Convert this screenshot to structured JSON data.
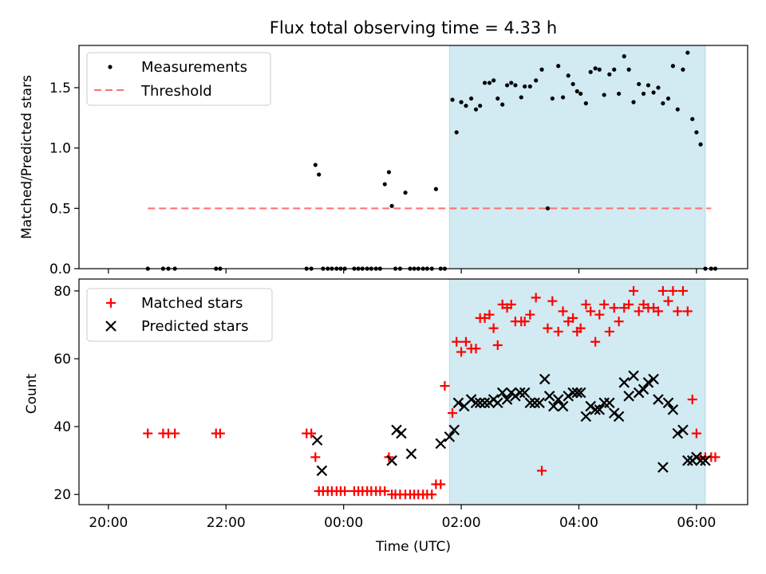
{
  "title": "Flux total observing time = 4.33 h",
  "xlabel": "Time (UTC)",
  "x_ticks": [
    "20:00",
    "22:00",
    "00:00",
    "02:00",
    "04:00",
    "06:00"
  ],
  "chart_data": [
    {
      "type": "scatter",
      "ylabel": "Matched/Predicted stars",
      "xlim": [
        -4.5,
        6.87
      ],
      "ylim": [
        0,
        1.85
      ],
      "y_ticks": [
        "0.0",
        "0.5",
        "1.0",
        "1.5"
      ],
      "y_tick_values": [
        0,
        0.5,
        1.0,
        1.5
      ],
      "legend_position": "top-left",
      "shaded_span": {
        "x": [
          1.8,
          6.15
        ],
        "color": "#add8e6"
      },
      "threshold": {
        "name": "Threshold",
        "value": 0.5,
        "x": [
          -3.33,
          6.25
        ],
        "color": "#ff6f6f"
      },
      "series": [
        {
          "name": "Measurements",
          "color": "#000000",
          "x": [
            -3.33,
            -3.07,
            -2.98,
            -2.87,
            -2.17,
            -2.1,
            -0.63,
            -0.55,
            -0.48,
            -0.42,
            -0.35,
            -0.27,
            -0.2,
            -0.12,
            -0.05,
            0.02,
            0.18,
            0.25,
            0.32,
            0.4,
            0.47,
            0.55,
            0.62,
            0.7,
            0.77,
            0.82,
            0.88,
            0.96,
            1.05,
            1.13,
            1.2,
            1.27,
            1.35,
            1.42,
            1.5,
            1.57,
            1.65,
            1.72,
            1.85,
            1.92,
            2.0,
            2.08,
            2.17,
            2.25,
            2.32,
            2.4,
            2.48,
            2.55,
            2.62,
            2.7,
            2.78,
            2.85,
            2.92,
            3.02,
            3.08,
            3.17,
            3.27,
            3.37,
            3.47,
            3.55,
            3.65,
            3.73,
            3.82,
            3.9,
            3.97,
            4.03,
            4.12,
            4.2,
            4.28,
            4.35,
            4.43,
            4.52,
            4.6,
            4.68,
            4.77,
            4.85,
            4.93,
            5.02,
            5.1,
            5.18,
            5.27,
            5.35,
            5.43,
            5.52,
            5.6,
            5.68,
            5.77,
            5.85,
            5.93,
            6.0,
            6.07,
            6.15,
            6.25,
            6.32
          ],
          "y": [
            0,
            0,
            0,
            0,
            0,
            0,
            0,
            0,
            0.86,
            0.78,
            0,
            0,
            0,
            0,
            0,
            0,
            0,
            0,
            0,
            0,
            0,
            0,
            0,
            0.7,
            0.8,
            0.52,
            0,
            0,
            0.63,
            0,
            0,
            0,
            0,
            0,
            0,
            0.66,
            0,
            0,
            1.4,
            1.13,
            1.38,
            1.35,
            1.41,
            1.32,
            1.35,
            1.54,
            1.54,
            1.56,
            1.41,
            1.36,
            1.52,
            1.54,
            1.52,
            1.42,
            1.51,
            1.51,
            1.56,
            1.65,
            0.5,
            1.41,
            1.68,
            1.42,
            1.6,
            1.53,
            1.47,
            1.45,
            1.37,
            1.63,
            1.66,
            1.65,
            1.44,
            1.61,
            1.65,
            1.45,
            1.76,
            1.65,
            1.38,
            1.53,
            1.45,
            1.52,
            1.46,
            1.5,
            1.37,
            1.41,
            1.68,
            1.32,
            1.65,
            1.79,
            1.24,
            1.13,
            1.03,
            0,
            0,
            0
          ]
        }
      ]
    },
    {
      "type": "scatter",
      "ylabel": "Count",
      "xlim": [
        -4.5,
        6.87
      ],
      "ylim": [
        17,
        83.5
      ],
      "y_ticks": [
        "20",
        "40",
        "60",
        "80"
      ],
      "y_tick_values": [
        20,
        40,
        60,
        80
      ],
      "legend_position": "top-left",
      "shaded_span": {
        "x": [
          1.8,
          6.15
        ],
        "color": "#add8e6"
      },
      "series": [
        {
          "name": "Matched stars",
          "marker": "plus",
          "color": "#ff0000",
          "x": [
            -3.33,
            -3.07,
            -2.98,
            -2.87,
            -2.17,
            -2.1,
            -0.63,
            -0.55,
            -0.48,
            -0.42,
            -0.35,
            -0.27,
            -0.2,
            -0.12,
            -0.05,
            0.02,
            0.18,
            0.25,
            0.32,
            0.4,
            0.47,
            0.55,
            0.62,
            0.7,
            0.77,
            0.82,
            0.88,
            0.96,
            1.05,
            1.13,
            1.2,
            1.27,
            1.35,
            1.42,
            1.5,
            1.57,
            1.65,
            1.72,
            1.85,
            1.92,
            2.0,
            2.08,
            2.17,
            2.25,
            2.32,
            2.4,
            2.48,
            2.55,
            2.62,
            2.7,
            2.78,
            2.85,
            2.92,
            3.02,
            3.08,
            3.17,
            3.27,
            3.37,
            3.47,
            3.55,
            3.65,
            3.73,
            3.82,
            3.9,
            3.97,
            4.03,
            4.12,
            4.2,
            4.28,
            4.35,
            4.43,
            4.52,
            4.6,
            4.68,
            4.77,
            4.85,
            4.93,
            5.02,
            5.1,
            5.18,
            5.27,
            5.35,
            5.43,
            5.52,
            5.6,
            5.68,
            5.77,
            5.85,
            5.93,
            6.0,
            6.07,
            6.15,
            6.25,
            6.32
          ],
          "y": [
            38,
            38,
            38,
            38,
            38,
            38,
            38,
            38,
            31,
            21,
            21,
            21,
            21,
            21,
            21,
            21,
            21,
            21,
            21,
            21,
            21,
            21,
            21,
            21,
            31,
            20,
            20,
            20,
            20,
            20,
            20,
            20,
            20,
            20,
            20,
            23,
            23,
            52,
            44,
            65,
            62,
            65,
            63,
            63,
            72,
            72,
            73,
            69,
            64,
            76,
            75,
            76,
            71,
            71,
            71,
            73,
            78,
            27,
            69,
            77,
            68,
            74,
            71,
            72,
            68,
            69,
            76,
            74,
            65,
            73,
            76,
            68,
            75,
            71,
            75,
            76,
            80,
            74,
            76,
            75,
            75,
            74,
            80,
            77,
            80,
            74,
            80,
            74,
            48,
            38,
            31,
            31,
            31,
            31
          ]
        },
        {
          "name": "Predicted stars",
          "marker": "x",
          "color": "#000000",
          "x": [
            -0.45,
            -0.37,
            0.82,
            0.9,
            0.98,
            1.15,
            1.65,
            1.8,
            1.88,
            1.95,
            2.05,
            2.17,
            2.25,
            2.32,
            2.4,
            2.48,
            2.55,
            2.62,
            2.7,
            2.78,
            2.85,
            2.92,
            3.0,
            3.08,
            3.17,
            3.25,
            3.33,
            3.42,
            3.5,
            3.57,
            3.65,
            3.73,
            3.82,
            3.9,
            3.97,
            4.03,
            4.12,
            4.2,
            4.28,
            4.35,
            4.43,
            4.52,
            4.6,
            4.68,
            4.77,
            4.85,
            4.93,
            5.02,
            5.1,
            5.18,
            5.27,
            5.35,
            5.43,
            5.52,
            5.6,
            5.68,
            5.77,
            5.85,
            5.93,
            6.0,
            6.07,
            6.15
          ],
          "y": [
            36,
            27,
            30,
            39,
            38,
            32,
            35,
            37,
            39,
            47,
            46,
            48,
            47,
            47,
            47,
            47,
            48,
            47,
            50,
            48,
            50,
            49,
            50,
            50,
            47,
            47,
            47,
            54,
            49,
            46,
            48,
            46,
            49,
            50,
            50,
            50,
            43,
            46,
            45,
            45,
            47,
            47,
            44,
            43,
            53,
            49,
            55,
            50,
            51,
            53,
            54,
            48,
            28,
            47,
            45,
            38,
            39,
            30,
            30,
            31,
            30,
            30
          ]
        }
      ]
    }
  ]
}
